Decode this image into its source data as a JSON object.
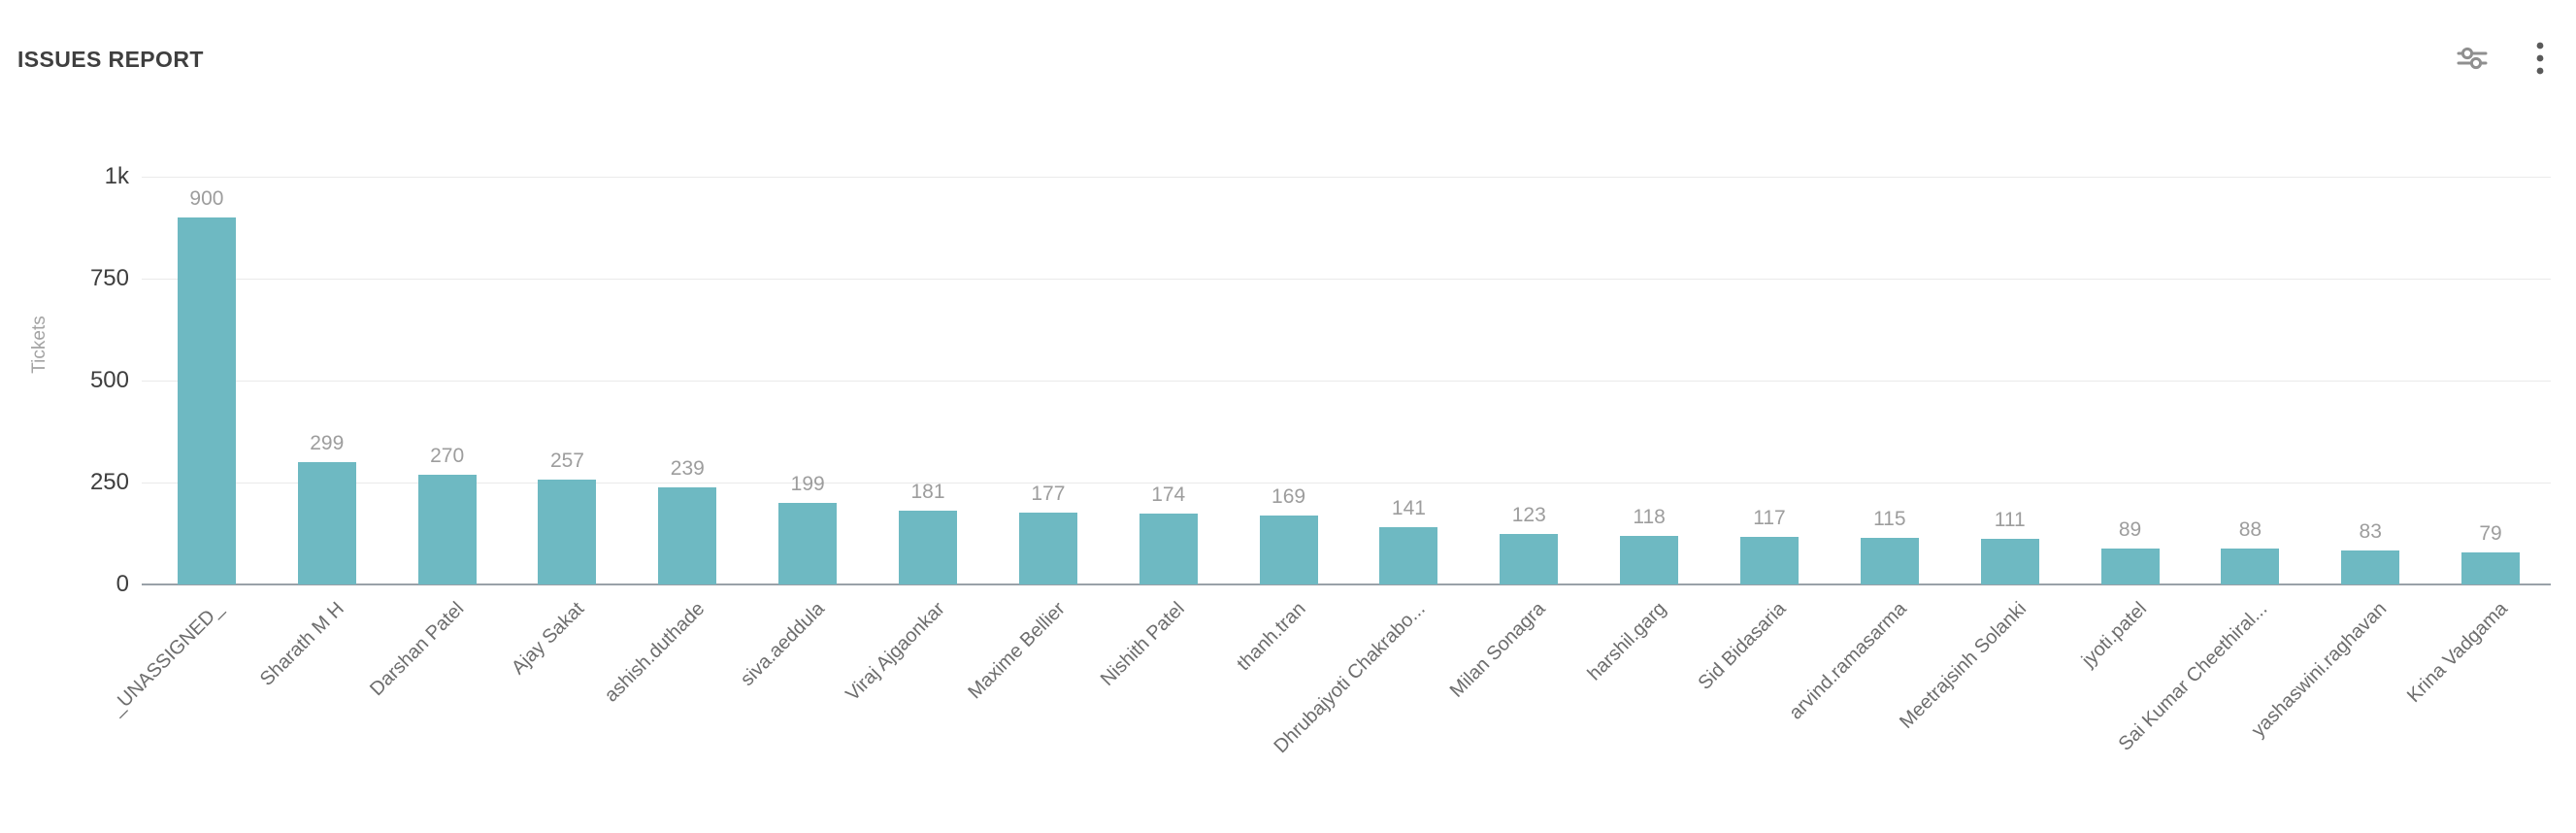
{
  "header": {
    "title": "ISSUES REPORT",
    "actions": {
      "settings_tooltip": "Chart settings",
      "more_tooltip": "More options"
    }
  },
  "colors": {
    "bar": "#6eb9c2",
    "grid": "#eaeaea",
    "axis_line": "#99a1a8",
    "value_label": "#9d9d9d",
    "x_label": "#6d6d6d",
    "y_tick_label": "#3e3e3e",
    "title_text": "#3f3f3f",
    "icon": "#8f8f8f"
  },
  "chart_data": {
    "type": "bar",
    "title": "ISSUES REPORT",
    "xlabel": "",
    "ylabel": "Tickets",
    "ylim": [
      0,
      1000
    ],
    "grid": true,
    "legend": false,
    "bar_color": "#6eb9c2",
    "yticks": [
      {
        "value": 0,
        "label": "0"
      },
      {
        "value": 250,
        "label": "250"
      },
      {
        "value": 500,
        "label": "500"
      },
      {
        "value": 750,
        "label": "750"
      },
      {
        "value": 1000,
        "label": "1k"
      }
    ],
    "categories": [
      "_UNASSIGNED_",
      "Sharath M H",
      "Darshan Patel",
      "Ajay Sakat",
      "ashish.duthade",
      "siva.aeddula",
      "Viraj Ajgaonkar",
      "Maxime Bellier",
      "Nishith Patel",
      "thanh.tran",
      "Dhrubajyoti Chakrabo...",
      "Milan Sonagra",
      "harshil.garg",
      "Sid Bidasaria",
      "arvind.ramasarma",
      "Meetrajsinh Solanki",
      "jyoti.patel",
      "Sai Kumar Cheethiral...",
      "yashaswini.raghavan",
      "Krina Vadgama"
    ],
    "values": [
      900,
      299,
      270,
      257,
      239,
      199,
      181,
      177,
      174,
      169,
      141,
      123,
      118,
      117,
      115,
      111,
      89,
      88,
      83,
      79
    ]
  }
}
